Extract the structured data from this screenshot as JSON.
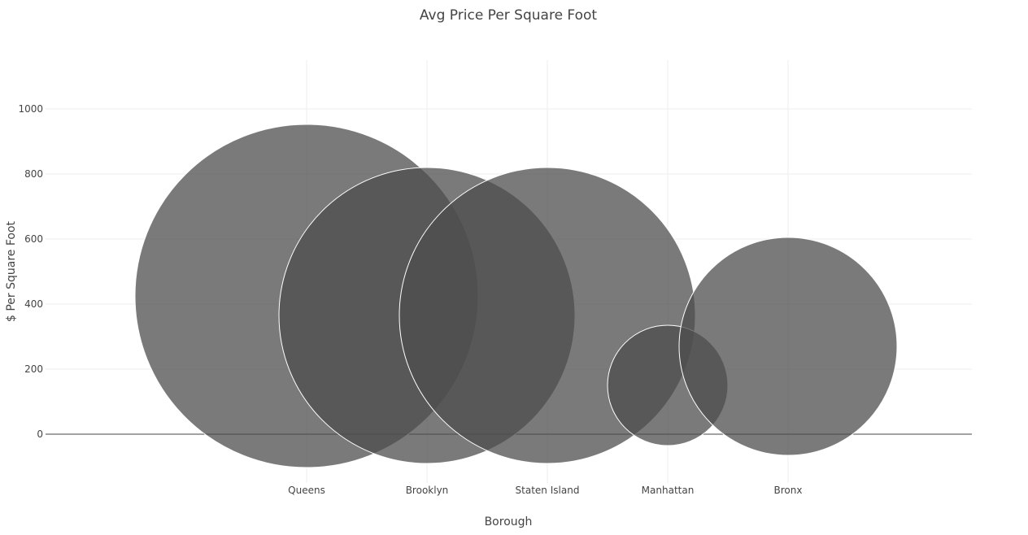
{
  "chart_data": {
    "type": "scatter",
    "subtype": "bubble",
    "title": "Avg Price Per Square Foot",
    "xlabel": "Borough",
    "ylabel": "$ Per Square Foot",
    "categories": [
      "Queens",
      "Brooklyn",
      "Staten Island",
      "Manhattan",
      "Bronx"
    ],
    "y": [
      425,
      365,
      365,
      150,
      270
    ],
    "bubble_size": [
      211,
      182,
      182,
      74,
      134
    ],
    "ylim": [
      -150,
      1150
    ],
    "yticks": [
      0,
      200,
      400,
      600,
      800,
      1000
    ],
    "grid": true,
    "legend": "none",
    "marker_color": "#4d4d4d",
    "marker_opacity": 0.75,
    "marker_line_color": "#ffffff"
  }
}
